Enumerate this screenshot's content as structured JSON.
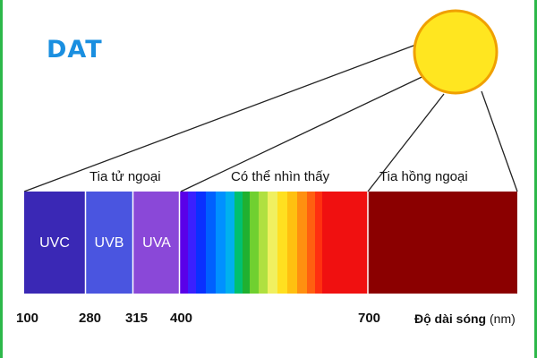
{
  "logo": {
    "text": "DAT",
    "color": "#1a8fe0"
  },
  "bands": {
    "uv_title": "Tia tử ngoại",
    "visible_title": "Có thể nhìn thấy",
    "ir_title": "Tia hồng ngoại"
  },
  "uv_segments": [
    {
      "label": "UVC",
      "color": "#3a28b5"
    },
    {
      "label": "UVB",
      "color": "#4a55e0"
    },
    {
      "label": "UVA",
      "color": "#8a48d8"
    }
  ],
  "ir_color": "#8b0000",
  "sun_color": "#ffe620",
  "ticks": [
    "100",
    "280",
    "315",
    "400",
    "700"
  ],
  "axis": {
    "title_bold": "Độ dài sóng",
    "unit": " (nm)"
  }
}
